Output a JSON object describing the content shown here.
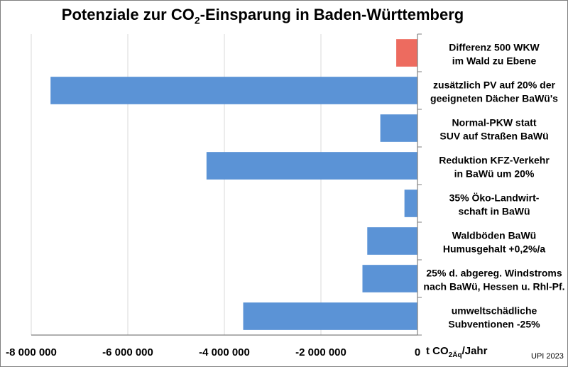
{
  "title": {
    "prefix": "Potenziale zur CO",
    "subscript": "2",
    "suffix": "-Einsparung in Baden-Württemberg"
  },
  "chart_data": {
    "type": "bar",
    "orientation": "horizontal",
    "categories": [
      [
        "Differenz 500 WKW",
        "im Wald zu Ebene"
      ],
      [
        "zusätzlich PV auf 20% der",
        "geeigneten Dächer BaWü's"
      ],
      [
        "Normal-PKW statt",
        "SUV auf Straßen BaWü"
      ],
      [
        "Reduktion KFZ-Verkehr",
        "in BaWü um 20%"
      ],
      [
        "35% Öko-Landwirt-",
        "schaft in BaWü"
      ],
      [
        "Waldböden BaWü",
        "Humusgehalt +0,2%/a"
      ],
      [
        "25% d. abgereg. Windstroms",
        "nach BaWü, Hessen u. Rhl-Pf."
      ],
      [
        "umweltschädliche",
        "Subventionen -25%"
      ]
    ],
    "values": [
      -440000,
      -7600000,
      -770000,
      -4370000,
      -270000,
      -1040000,
      -1140000,
      -3610000
    ],
    "colors": [
      "#ed6b5f",
      "#5b93d6",
      "#5b93d6",
      "#5b93d6",
      "#5b93d6",
      "#5b93d6",
      "#5b93d6",
      "#5b93d6"
    ],
    "xlim": [
      -8000000,
      0
    ],
    "xticks": [
      -8000000,
      -6000000,
      -4000000,
      -2000000,
      0
    ],
    "xtick_labels": [
      "-8 000 000",
      "-6 000 000",
      "-4 000 000",
      "-2 000 000",
      "0"
    ],
    "grid": true
  },
  "unit": {
    "prefix": "t CO",
    "subscript": "2Äq",
    "suffix": "/Jahr"
  },
  "credit": "UPI 2023"
}
